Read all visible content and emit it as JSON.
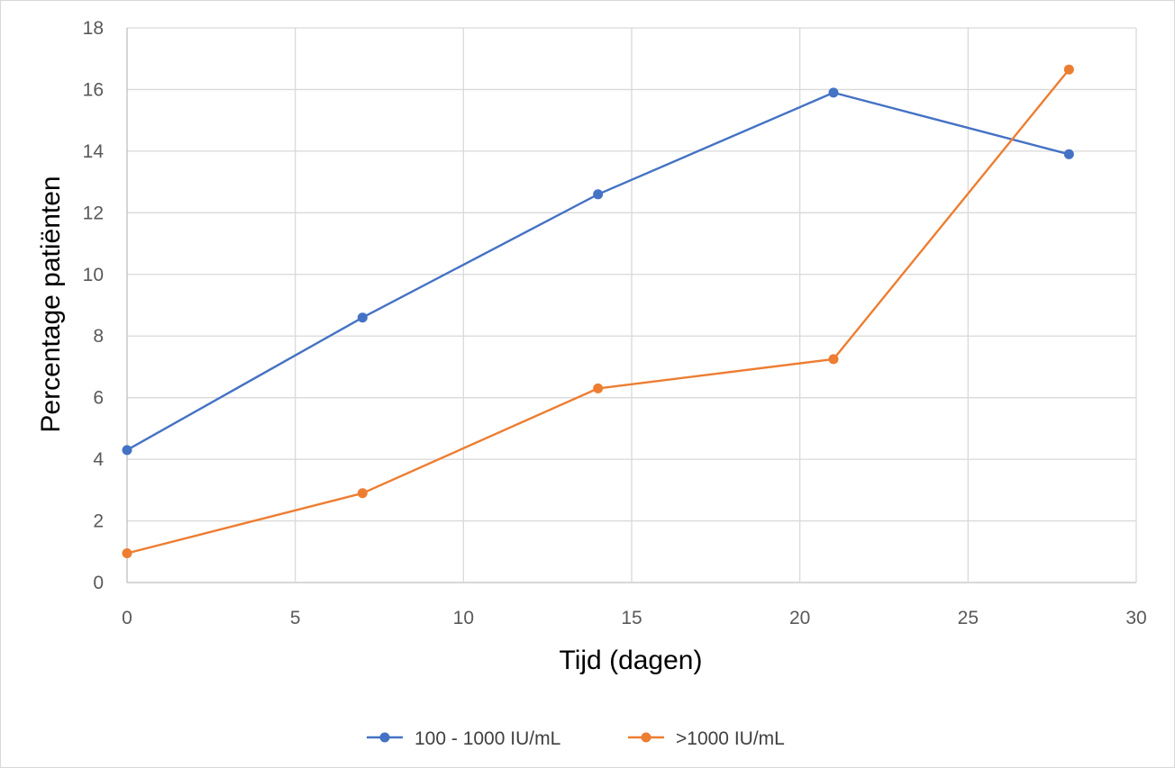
{
  "chart_data": {
    "type": "line",
    "xlabel": "Tijd (dagen)",
    "ylabel": "Percentage patiënten",
    "xlim": [
      0,
      30
    ],
    "ylim": [
      0,
      18
    ],
    "xticks": [
      0,
      5,
      10,
      15,
      20,
      25,
      30
    ],
    "yticks": [
      0,
      2,
      4,
      6,
      8,
      10,
      12,
      14,
      16,
      18
    ],
    "grid": true,
    "legend_position": "bottom",
    "series": [
      {
        "name": "100 - 1000 IU/mL",
        "color": "#4472C4",
        "x": [
          0,
          7,
          14,
          21,
          28
        ],
        "y": [
          4.3,
          8.6,
          12.6,
          15.9,
          13.9
        ]
      },
      {
        "name": ">1000 IU/mL",
        "color": "#ED7D31",
        "x": [
          0,
          7,
          14,
          21,
          28
        ],
        "y": [
          0.95,
          2.9,
          6.3,
          7.25,
          16.65
        ]
      }
    ]
  }
}
